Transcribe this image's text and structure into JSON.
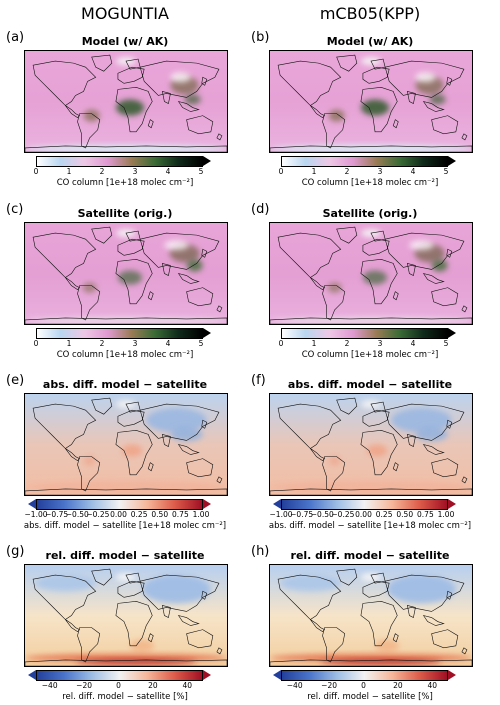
{
  "columns": [
    "MOGUNTIA",
    "mCB05(KPP)"
  ],
  "rows": [
    {
      "labels": [
        "(a)",
        "(b)"
      ],
      "title": "Model (w/ AK)",
      "colorbar": {
        "ticks": [
          "0",
          "1",
          "2",
          "3",
          "4",
          "5"
        ],
        "label": "CO column [1e+18 molec cm⁻²]",
        "colors": [
          "#ffffff",
          "#b9d6f0",
          "#eec8e6",
          "#e09ad2",
          "#9b7b56",
          "#3a6b35",
          "#0f2a1a",
          "#000000"
        ]
      },
      "map_style": "model"
    },
    {
      "labels": [
        "(c)",
        "(d)"
      ],
      "title": "Satellite (orig.)",
      "colorbar": {
        "ticks": [
          "0",
          "1",
          "2",
          "3",
          "4",
          "5"
        ],
        "label": "CO column [1e+18 molec cm⁻²]",
        "colors": [
          "#ffffff",
          "#b9d6f0",
          "#eec8e6",
          "#e09ad2",
          "#9b7b56",
          "#3a6b35",
          "#0f2a1a",
          "#000000"
        ]
      },
      "map_style": "satellite"
    },
    {
      "labels": [
        "(e)",
        "(f)"
      ],
      "title": "abs. diff. model − satellite",
      "colorbar": {
        "ticks": [
          "−1.00",
          "−0.75",
          "−0.50",
          "−0.25",
          "0.00",
          "0.25",
          "0.50",
          "0.75",
          "1.00"
        ],
        "label": "abs. diff. model − satellite [1e+18 molec cm⁻²]",
        "colors": [
          "#233f9c",
          "#4a74c9",
          "#9dbde4",
          "#f2f2f2",
          "#f5b79a",
          "#dd5c4a",
          "#a10f24"
        ]
      },
      "map_style": "absdiff"
    },
    {
      "labels": [
        "(g)",
        "(h)"
      ],
      "title": "rel. diff. model − satellite",
      "colorbar": {
        "ticks": [
          "−40",
          "−20",
          "0",
          "20",
          "40"
        ],
        "label": "rel. diff. model − satellite [%]",
        "colors": [
          "#233f9c",
          "#4a74c9",
          "#9dbde4",
          "#f2f2f2",
          "#f5b79a",
          "#dd5c4a",
          "#a10f24"
        ]
      },
      "map_style": "reldiff"
    }
  ]
}
